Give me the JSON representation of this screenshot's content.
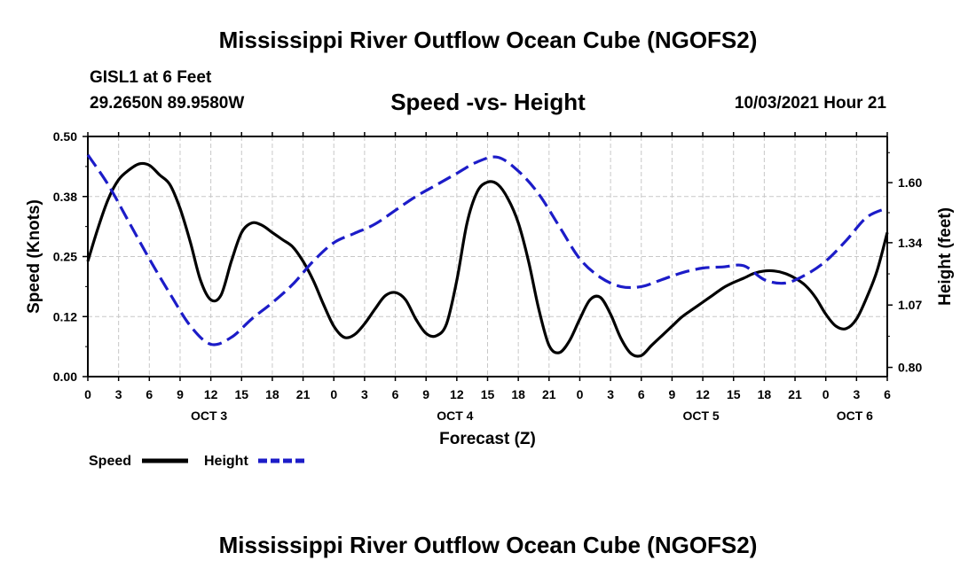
{
  "header": {
    "title": "Mississippi River Outflow Ocean Cube (NGOFS2)",
    "station": "GISL1 at 6 Feet",
    "coords": "29.2650N  89.9580W",
    "subtitle": "Speed -vs- Height",
    "datetime": "10/03/2021 Hour 21"
  },
  "footer": {
    "title": "Mississippi River Outflow Ocean Cube (NGOFS2)"
  },
  "chart_data": {
    "type": "line",
    "x_unit": "hours from 10/03 0Z",
    "xlim": [
      0,
      78
    ],
    "xlabel": "Forecast (Z)",
    "x_tick_labels": [
      "0",
      "3",
      "6",
      "9",
      "12",
      "15",
      "18",
      "21",
      "0",
      "3",
      "6",
      "9",
      "12",
      "15",
      "18",
      "21",
      "0",
      "3",
      "6",
      "9",
      "12",
      "15",
      "18",
      "21",
      "0",
      "3",
      "6"
    ],
    "day_labels": [
      {
        "label": "OCT 3",
        "hour": 12
      },
      {
        "label": "OCT 4",
        "hour": 36
      },
      {
        "label": "OCT 5",
        "hour": 60
      },
      {
        "label": "OCT 6",
        "hour": 75
      }
    ],
    "left_axis": {
      "label": "Speed (Knots)",
      "ylim": [
        0,
        0.5
      ],
      "ticks": [
        0,
        0.125,
        0.25,
        0.375,
        0.5
      ],
      "tick_labels": [
        "0.00",
        "0.12",
        "0.25",
        "0.38",
        "0.50"
      ]
    },
    "right_axis": {
      "label": "Height (feet)",
      "ylim": [
        0.76,
        1.8
      ],
      "ticks": [
        0.8,
        1.07,
        1.34,
        1.6
      ],
      "tick_labels": [
        "0.80",
        "1.07",
        "1.34",
        "1.60"
      ]
    },
    "series": [
      {
        "name": "Speed",
        "axis": "left",
        "color": "#000000",
        "dash": "solid",
        "x": [
          0,
          1,
          2,
          3,
          4,
          5,
          6,
          7,
          8,
          9,
          10,
          11,
          12,
          13,
          14,
          15,
          16,
          17,
          18,
          19,
          20,
          21,
          22,
          23,
          24,
          25,
          26,
          27,
          28,
          29,
          30,
          31,
          32,
          33,
          34,
          35,
          36,
          37,
          38,
          39,
          40,
          41,
          42,
          43,
          44,
          45,
          46,
          47,
          48,
          49,
          50,
          51,
          52,
          53,
          54,
          55,
          56,
          57,
          58,
          59,
          60,
          61,
          62,
          63,
          64,
          65,
          66,
          67,
          68,
          69,
          70,
          71,
          72,
          73,
          74,
          75,
          76,
          77,
          78
        ],
        "values": [
          0.24,
          0.31,
          0.37,
          0.41,
          0.43,
          0.443,
          0.44,
          0.42,
          0.4,
          0.35,
          0.28,
          0.2,
          0.16,
          0.17,
          0.24,
          0.3,
          0.32,
          0.315,
          0.3,
          0.285,
          0.27,
          0.24,
          0.2,
          0.15,
          0.105,
          0.082,
          0.087,
          0.11,
          0.14,
          0.168,
          0.175,
          0.16,
          0.12,
          0.09,
          0.085,
          0.11,
          0.2,
          0.32,
          0.385,
          0.405,
          0.4,
          0.37,
          0.32,
          0.24,
          0.14,
          0.065,
          0.05,
          0.075,
          0.12,
          0.16,
          0.165,
          0.13,
          0.08,
          0.048,
          0.044,
          0.065,
          0.085,
          0.105,
          0.125,
          0.14,
          0.155,
          0.17,
          0.185,
          0.196,
          0.205,
          0.215,
          0.22,
          0.22,
          0.215,
          0.205,
          0.19,
          0.165,
          0.13,
          0.105,
          0.1,
          0.12,
          0.165,
          0.22,
          0.3
        ]
      },
      {
        "name": "Height",
        "axis": "right",
        "color": "#1c1cc8",
        "dash": "dashed",
        "x": [
          0,
          2,
          4,
          6,
          8,
          10,
          12,
          14,
          16,
          18,
          20,
          22,
          24,
          26,
          28,
          30,
          32,
          34,
          36,
          38,
          40,
          42,
          44,
          46,
          48,
          50,
          52,
          54,
          56,
          58,
          60,
          62,
          64,
          66,
          68,
          70,
          72,
          74,
          76,
          78
        ],
        "values": [
          1.72,
          1.59,
          1.43,
          1.27,
          1.12,
          0.98,
          0.9,
          0.93,
          1.01,
          1.08,
          1.16,
          1.26,
          1.34,
          1.38,
          1.42,
          1.48,
          1.54,
          1.59,
          1.64,
          1.69,
          1.71,
          1.65,
          1.55,
          1.41,
          1.27,
          1.19,
          1.15,
          1.15,
          1.18,
          1.21,
          1.23,
          1.235,
          1.24,
          1.18,
          1.165,
          1.2,
          1.26,
          1.35,
          1.45,
          1.49
        ]
      }
    ],
    "legend": [
      {
        "name": "Speed",
        "color": "#000000",
        "dash": "solid"
      },
      {
        "name": "Height",
        "color": "#1c1cc8",
        "dash": "dashed"
      }
    ]
  }
}
